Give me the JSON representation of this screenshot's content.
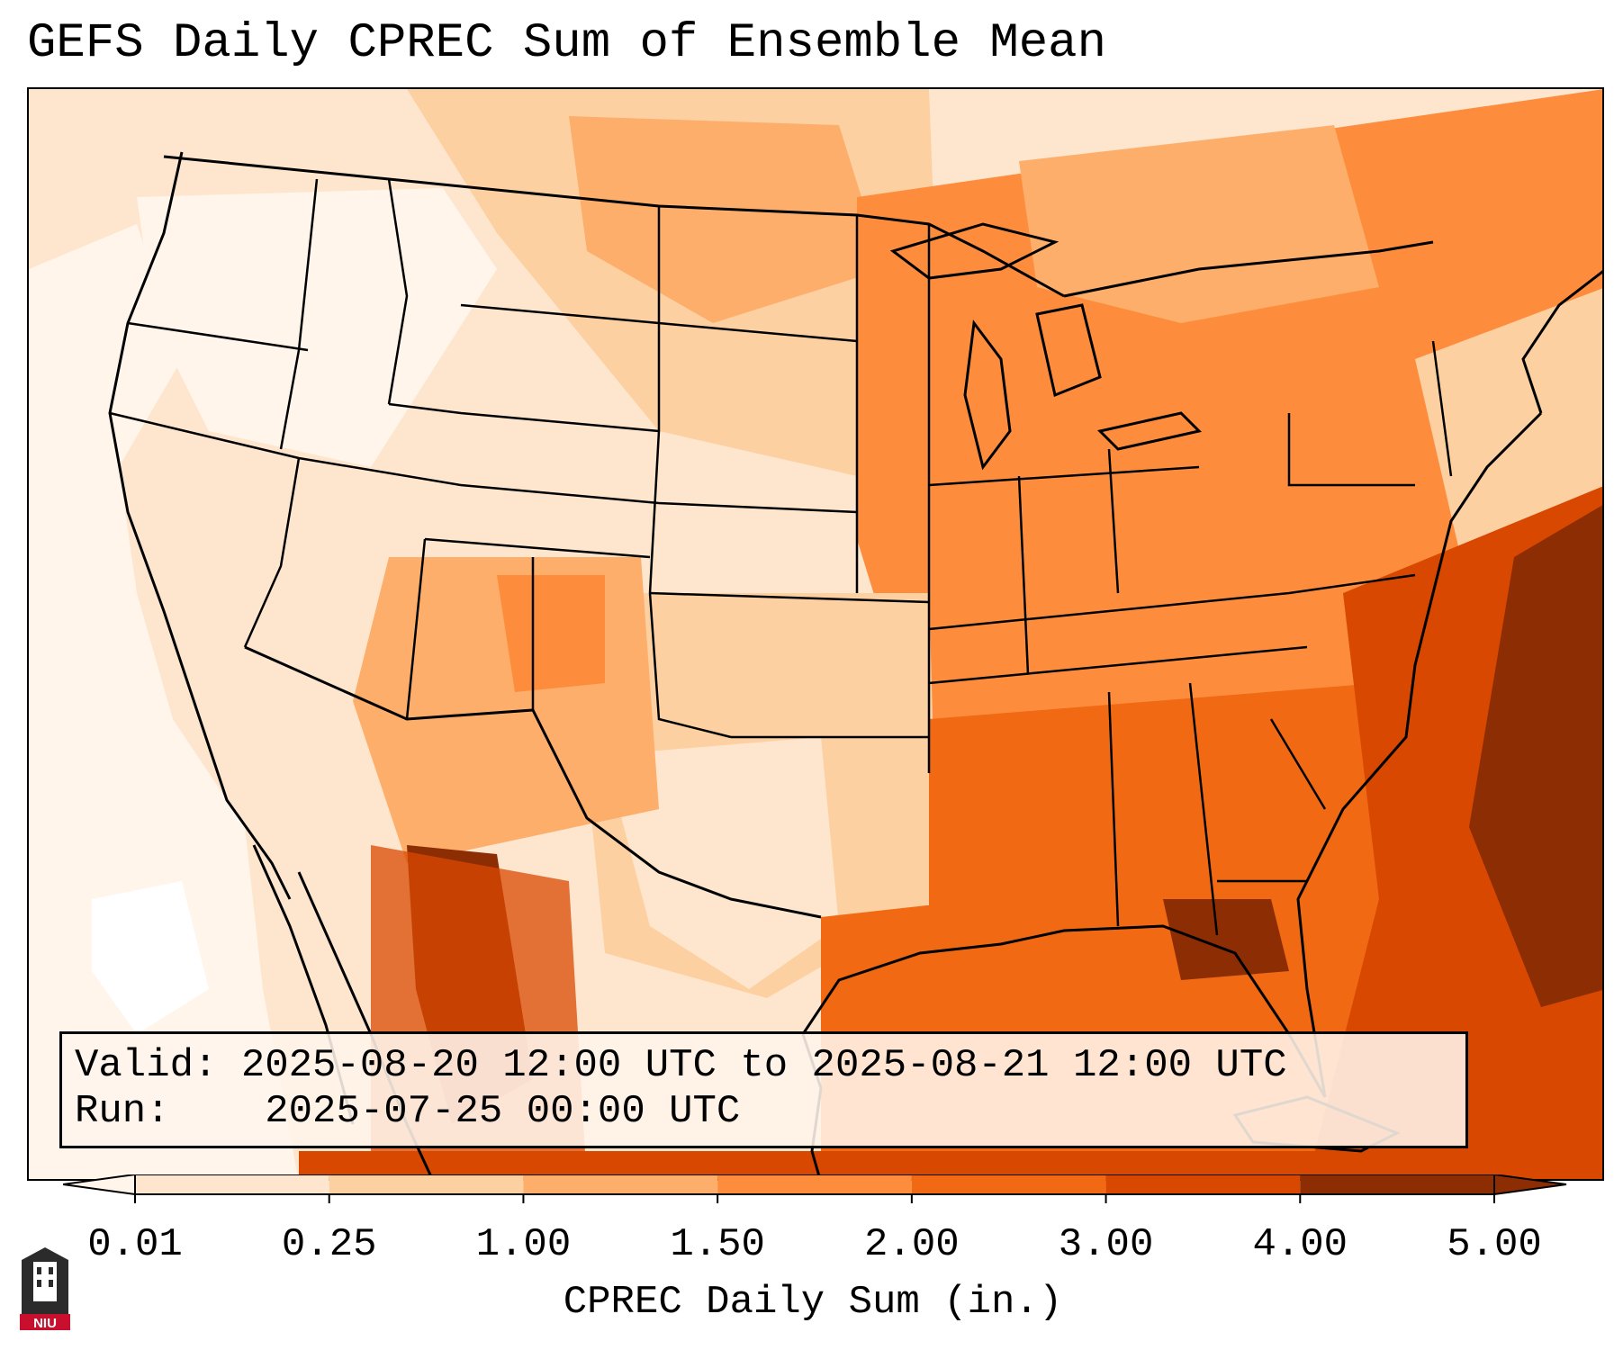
{
  "title": "GEFS Daily CPREC Sum of Ensemble Mean",
  "info": {
    "valid_label": "Valid:",
    "valid_value": "2025-08-20 12:00 UTC to 2025-08-21 12:00 UTC",
    "run_label": "Run:",
    "run_value": "2025-07-25 00:00 UTC"
  },
  "colorbar": {
    "label": "CPREC Daily Sum (in.)",
    "ticks": [
      "0.01",
      "0.25",
      "1.00",
      "1.50",
      "2.00",
      "3.00",
      "4.00",
      "5.00"
    ],
    "colors": [
      "#fff5eb",
      "#fee6ce",
      "#fdd0a2",
      "#fdae6b",
      "#fd8d3c",
      "#f16913",
      "#d94801",
      "#8c2d04"
    ],
    "extend": "both"
  },
  "logo": {
    "text": "NIU",
    "primary_color": "#c8102e"
  },
  "map": {
    "projection": "Lambert conformal, CONUS",
    "basemap_colors": {
      "ocean_atlantic": "#d94801",
      "ocean_atlantic_deep": "#8c2d04",
      "gulf": "#f16913",
      "pacific": "#fff5eb",
      "land_west": "#fee6ce",
      "land_east": "#fd8d3c",
      "border": "#000000"
    }
  }
}
